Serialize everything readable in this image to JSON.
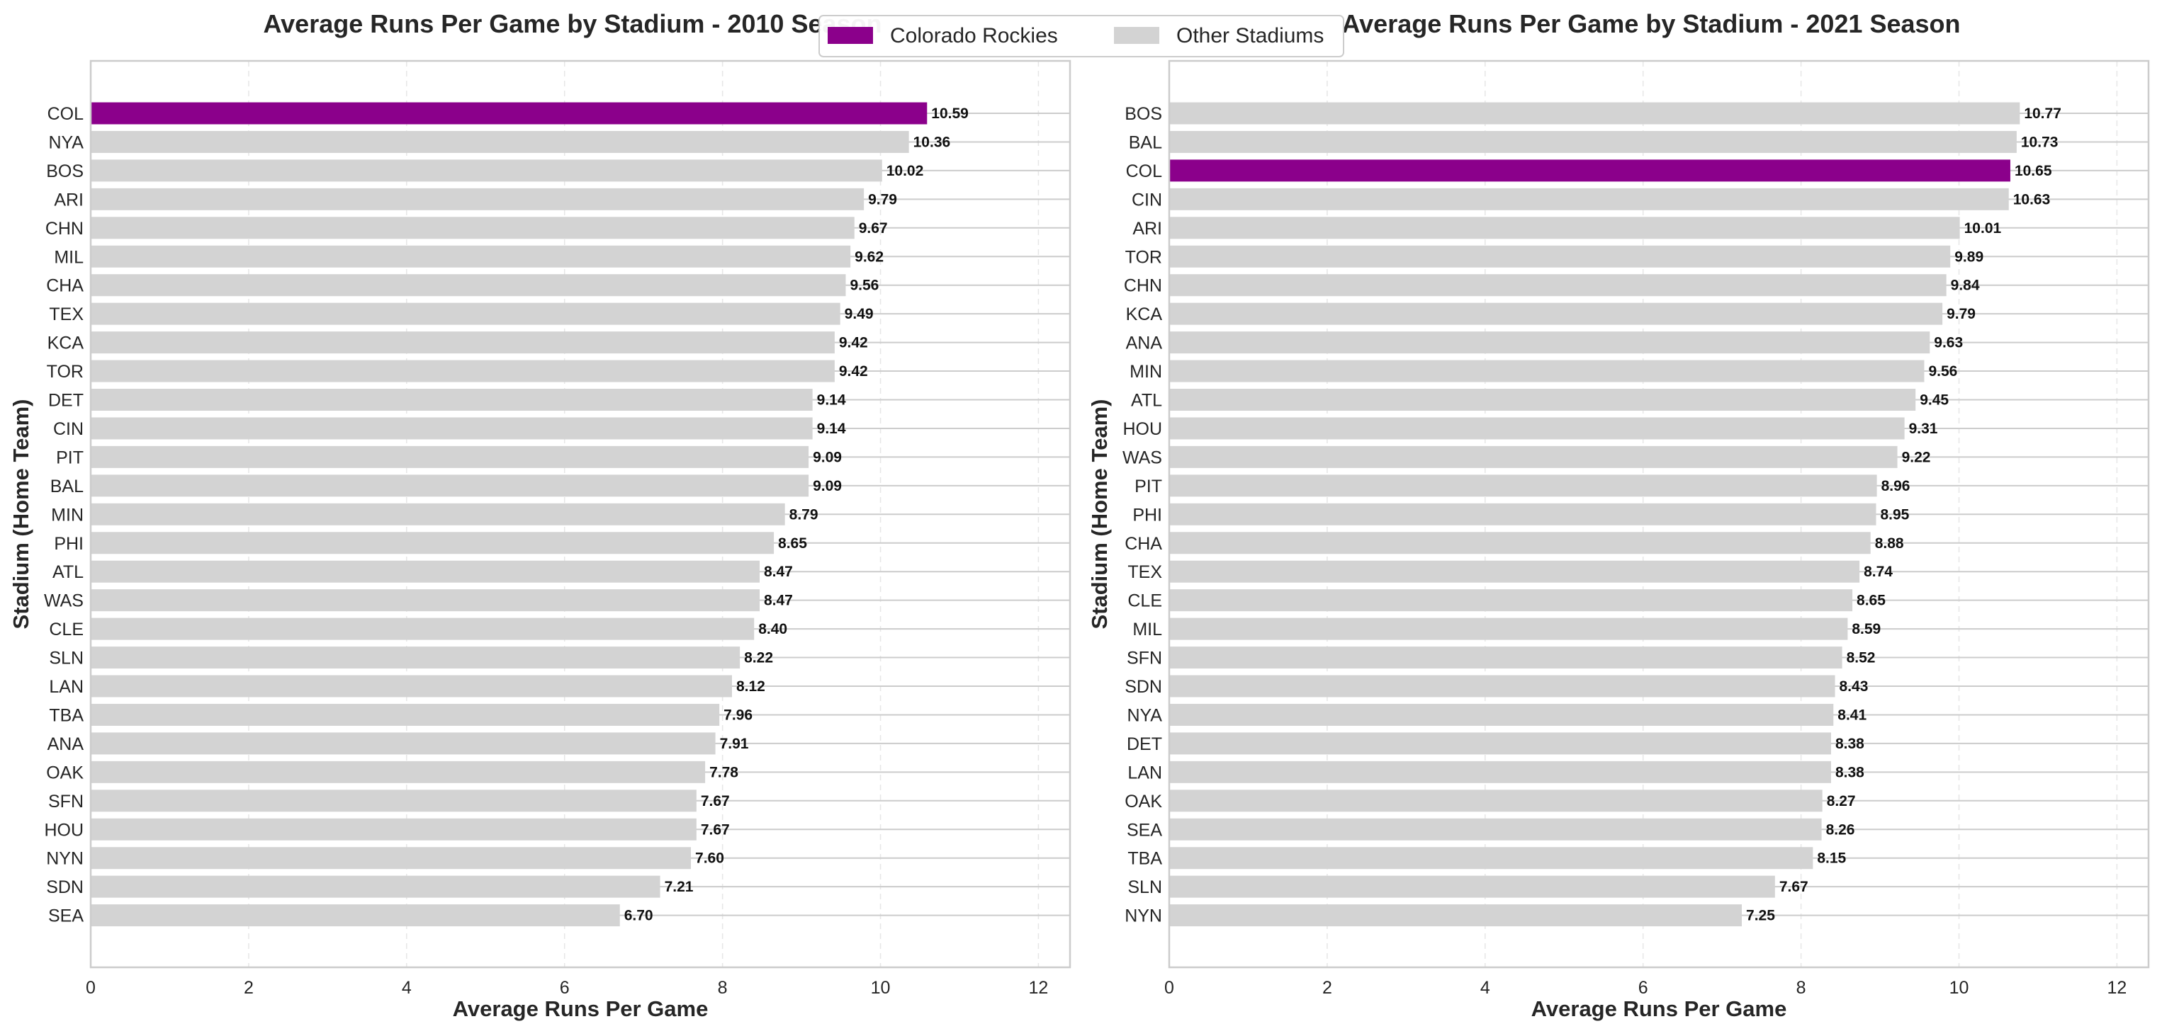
{
  "colors": {
    "highlight": "#8B008B",
    "other": "#D3D3D3",
    "grid": "#CCCCCC",
    "frame": "#CCCCCC",
    "text": "#262626"
  },
  "legend": {
    "placement": "top-center",
    "items": [
      {
        "label": "Colorado Rockies",
        "color": "#8B008B"
      },
      {
        "label": "Other Stadiums",
        "color": "#D3D3D3"
      }
    ]
  },
  "chart_data": [
    {
      "type": "bar",
      "orientation": "horizontal",
      "title": "Average Runs Per Game by Stadium - 2010 Season",
      "xlabel": "Average Runs Per Game",
      "ylabel": "Stadium (Home Team)",
      "xlim": [
        0,
        12.4
      ],
      "xticks": [
        0,
        2,
        4,
        6,
        8,
        10,
        12
      ],
      "grid": true,
      "highlight": "COL",
      "categories": [
        "COL",
        "NYA",
        "BOS",
        "ARI",
        "CHN",
        "MIL",
        "CHA",
        "TEX",
        "KCA",
        "TOR",
        "DET",
        "CIN",
        "PIT",
        "BAL",
        "MIN",
        "PHI",
        "ATL",
        "WAS",
        "CLE",
        "SLN",
        "LAN",
        "TBA",
        "ANA",
        "OAK",
        "SFN",
        "HOU",
        "NYN",
        "SDN",
        "SEA"
      ],
      "values": [
        10.59,
        10.36,
        10.02,
        9.79,
        9.67,
        9.62,
        9.56,
        9.49,
        9.42,
        9.42,
        9.14,
        9.14,
        9.09,
        9.09,
        8.79,
        8.65,
        8.47,
        8.47,
        8.4,
        8.22,
        8.12,
        7.96,
        7.91,
        7.78,
        7.67,
        7.67,
        7.6,
        7.21,
        6.7
      ],
      "labels": [
        "10.59",
        "10.36",
        "10.02",
        "9.79",
        "9.67",
        "9.62",
        "9.56",
        "9.49",
        "9.42",
        "9.42",
        "9.14",
        "9.14",
        "9.09",
        "9.09",
        "8.79",
        "8.65",
        "8.47",
        "8.47",
        "8.40",
        "8.22",
        "8.12",
        "7.96",
        "7.91",
        "7.78",
        "7.67",
        "7.67",
        "7.60",
        "7.21",
        "6.70"
      ]
    },
    {
      "type": "bar",
      "orientation": "horizontal",
      "title": "Average Runs Per Game by Stadium - 2021 Season",
      "xlabel": "Average Runs Per Game",
      "ylabel": "Stadium (Home Team)",
      "xlim": [
        0,
        12.4
      ],
      "xticks": [
        0,
        2,
        4,
        6,
        8,
        10,
        12
      ],
      "grid": true,
      "highlight": "COL",
      "categories": [
        "BOS",
        "BAL",
        "COL",
        "CIN",
        "ARI",
        "TOR",
        "CHN",
        "KCA",
        "ANA",
        "MIN",
        "ATL",
        "HOU",
        "WAS",
        "PIT",
        "PHI",
        "CHA",
        "TEX",
        "CLE",
        "MIL",
        "SFN",
        "SDN",
        "NYA",
        "DET",
        "LAN",
        "OAK",
        "SEA",
        "TBA",
        "SLN",
        "NYN"
      ],
      "values": [
        10.77,
        10.73,
        10.65,
        10.63,
        10.01,
        9.89,
        9.84,
        9.79,
        9.63,
        9.56,
        9.45,
        9.31,
        9.22,
        8.96,
        8.95,
        8.88,
        8.74,
        8.65,
        8.59,
        8.52,
        8.43,
        8.41,
        8.38,
        8.38,
        8.27,
        8.26,
        8.15,
        7.67,
        7.25
      ],
      "labels": [
        "10.77",
        "10.73",
        "10.65",
        "10.63",
        "10.01",
        "9.89",
        "9.84",
        "9.79",
        "9.63",
        "9.56",
        "9.45",
        "9.31",
        "9.22",
        "8.96",
        "8.95",
        "8.88",
        "8.74",
        "8.65",
        "8.59",
        "8.52",
        "8.43",
        "8.41",
        "8.38",
        "8.38",
        "8.27",
        "8.26",
        "8.15",
        "7.67",
        "7.25"
      ]
    }
  ]
}
